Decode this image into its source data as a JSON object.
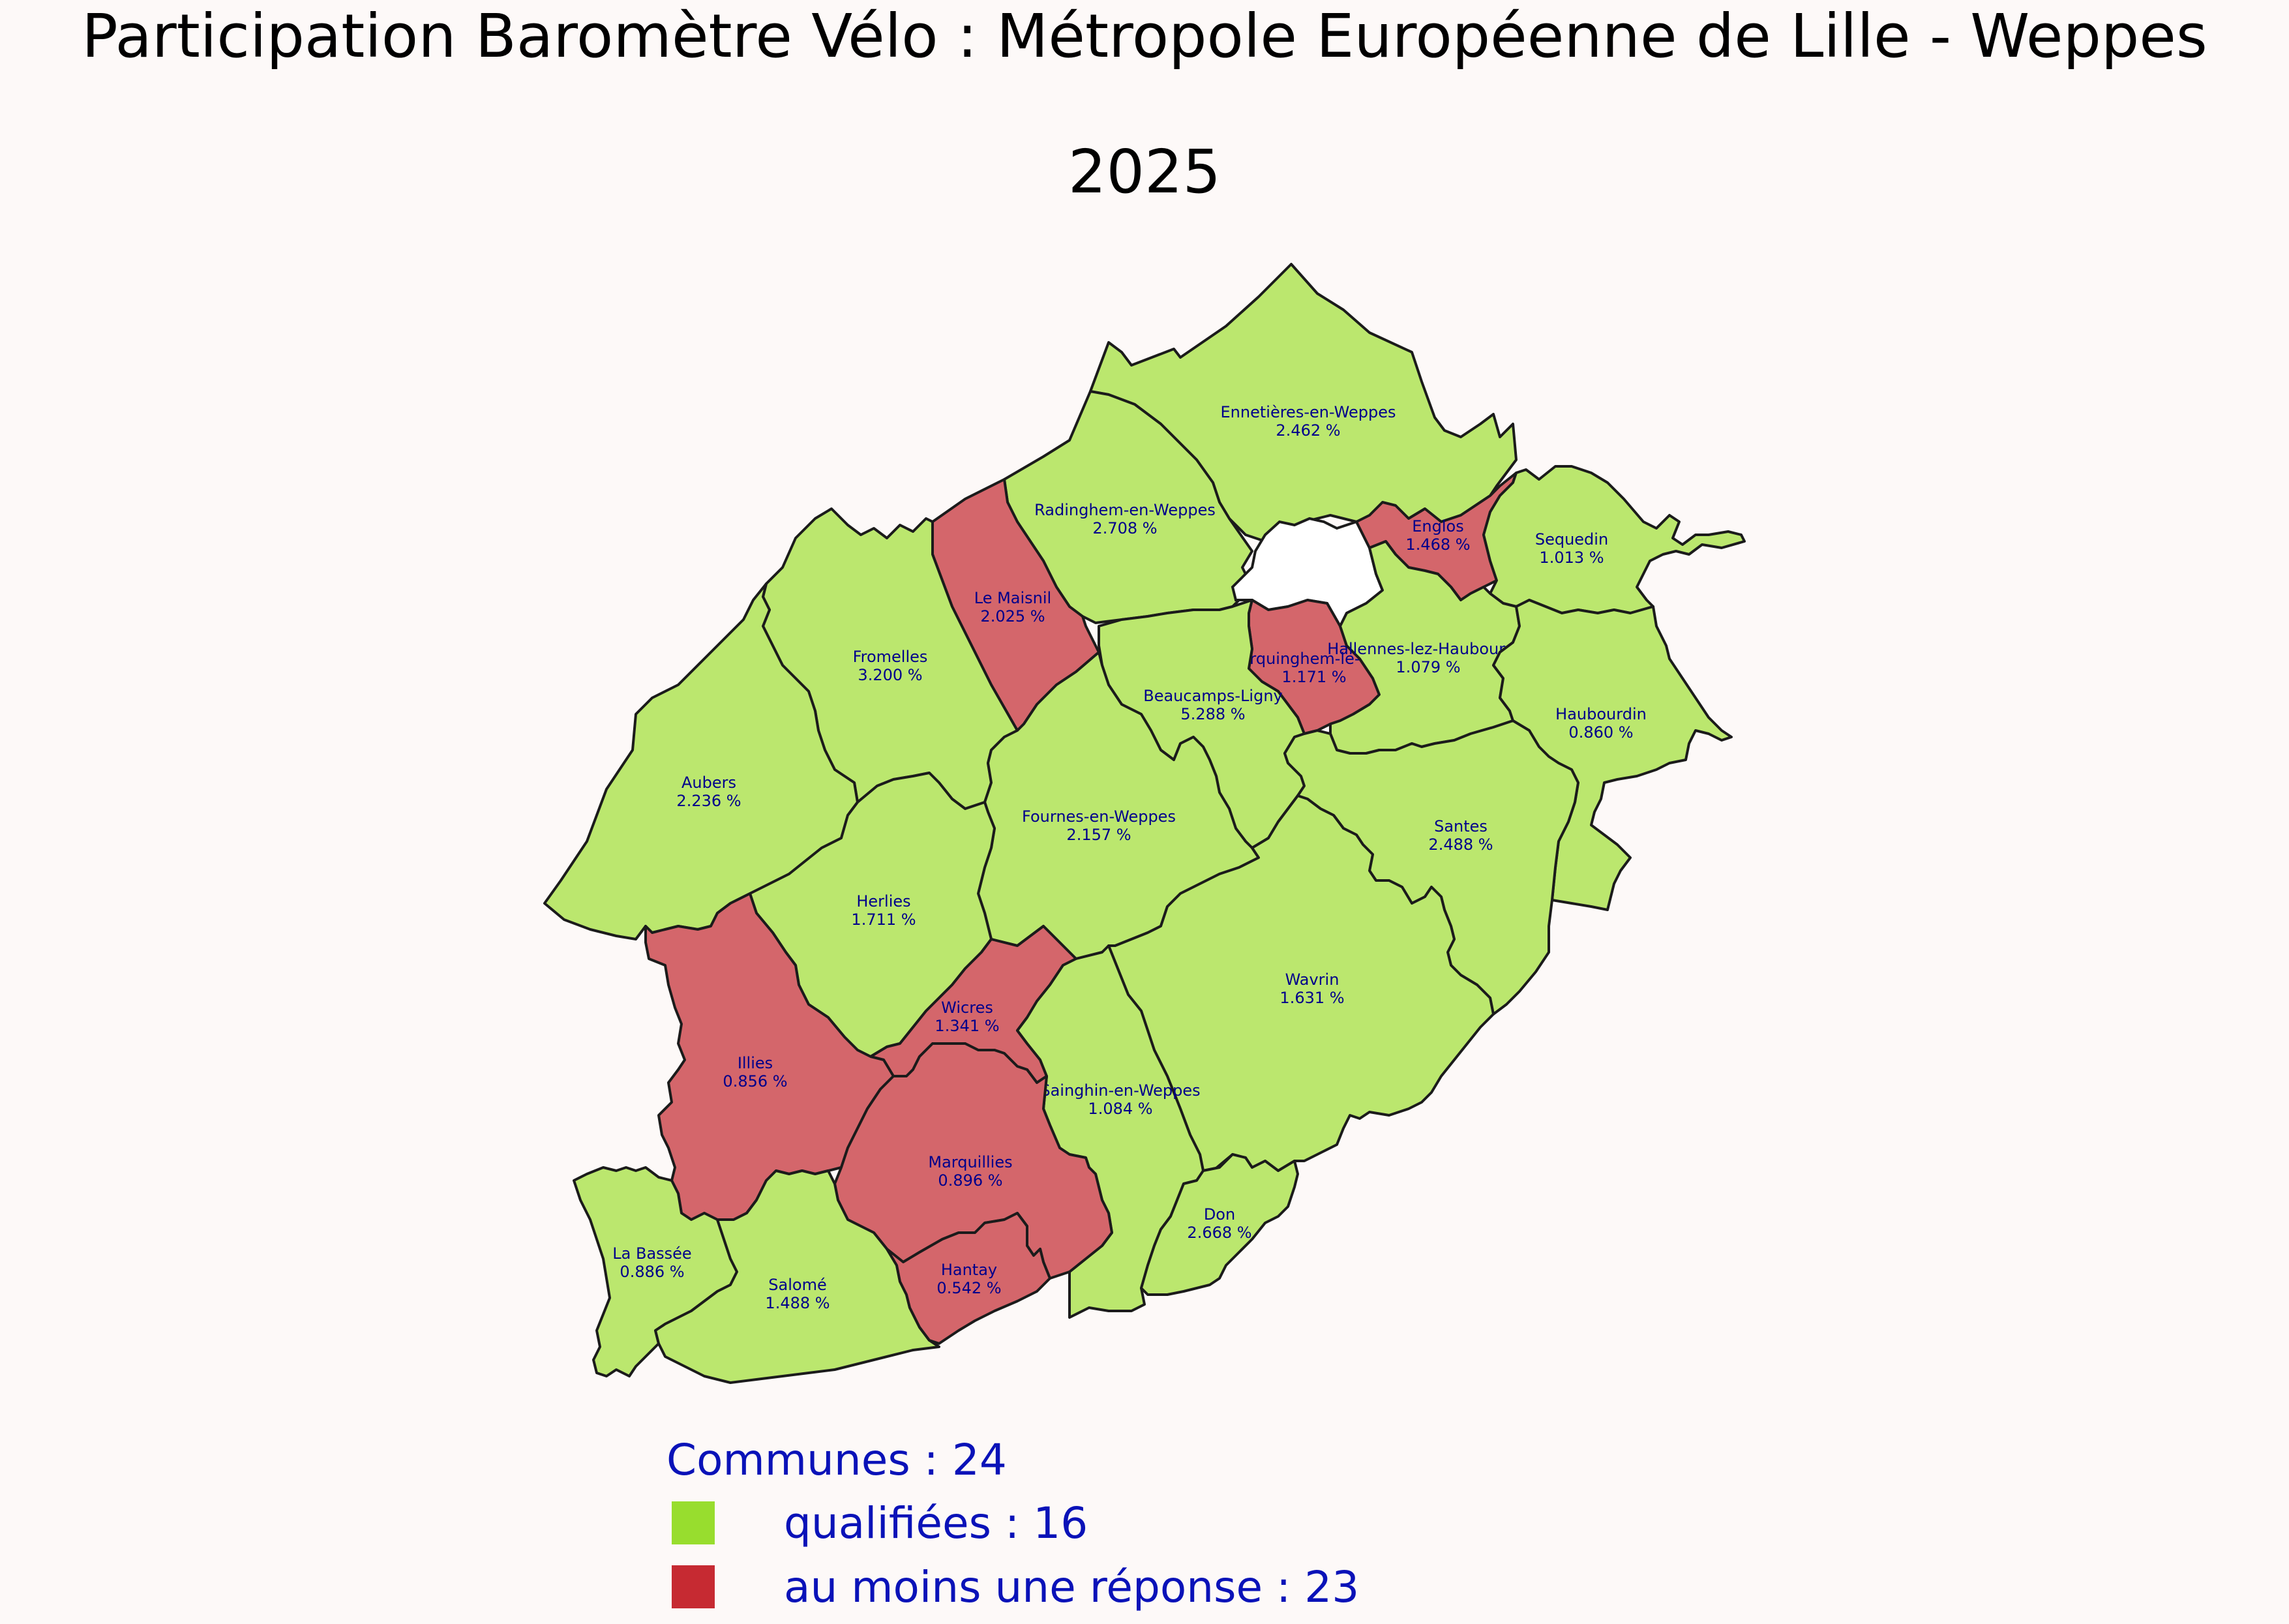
{
  "title_line1": "Participation Baromètre Vélo : Métropole Européenne de Lille - Weppes",
  "title_line2": "2025",
  "colors": {
    "qualified": "#bbe76e",
    "partial": "#d4666b",
    "legend_qualified": "#98dd2e",
    "legend_partial": "#c62a32",
    "label": "#00008b",
    "legend_text": "#0a12b8"
  },
  "communes": [
    {
      "name": "Ennetières-en-Weppes",
      "value": "2.462 %",
      "status": "qualified"
    },
    {
      "name": "Radinghem-en-Weppes",
      "value": "2.708 %",
      "status": "qualified"
    },
    {
      "name": "Le Maisnil",
      "value": "2.025 %",
      "status": "partial"
    },
    {
      "name": "Fromelles",
      "value": "3.200 %",
      "status": "qualified"
    },
    {
      "name": "Aubers",
      "value": "2.236 %",
      "status": "qualified"
    },
    {
      "name": "Englos",
      "value": "1.468 %",
      "status": "partial"
    },
    {
      "name": "Sequedin",
      "value": "1.013 %",
      "status": "qualified"
    },
    {
      "name": "Erquinghem-le-Sec",
      "value": "1.171 %",
      "status": "partial"
    },
    {
      "name": "Hallennes-lez-Haubourdin",
      "value": "1.079 %",
      "status": "qualified"
    },
    {
      "name": "Beaucamps-Ligny",
      "value": "5.288 %",
      "status": "qualified"
    },
    {
      "name": "Haubourdin",
      "value": "0.860 %",
      "status": "qualified"
    },
    {
      "name": "Fournes-en-Weppes",
      "value": "2.157 %",
      "status": "qualified"
    },
    {
      "name": "Santes",
      "value": "2.488 %",
      "status": "qualified"
    },
    {
      "name": "Herlies",
      "value": "1.711 %",
      "status": "qualified"
    },
    {
      "name": "Wavrin",
      "value": "1.631 %",
      "status": "qualified"
    },
    {
      "name": "Wicres",
      "value": "1.341 %",
      "status": "partial"
    },
    {
      "name": "Illies",
      "value": "0.856 %",
      "status": "partial"
    },
    {
      "name": "Sainghin-en-Weppes",
      "value": "1.084 %",
      "status": "qualified"
    },
    {
      "name": "Marquillies",
      "value": "0.896 %",
      "status": "partial"
    },
    {
      "name": "Don",
      "value": "2.668 %",
      "status": "qualified"
    },
    {
      "name": "La Bassée",
      "value": "0.886 %",
      "status": "qualified"
    },
    {
      "name": "Salomé",
      "value": "1.488 %",
      "status": "qualified"
    },
    {
      "name": "Hantay",
      "value": "0.542 %",
      "status": "partial"
    }
  ],
  "legend": {
    "title": "Communes : 24",
    "qualified": "qualifiées : 16",
    "partial": "au moins une réponse : 23"
  }
}
